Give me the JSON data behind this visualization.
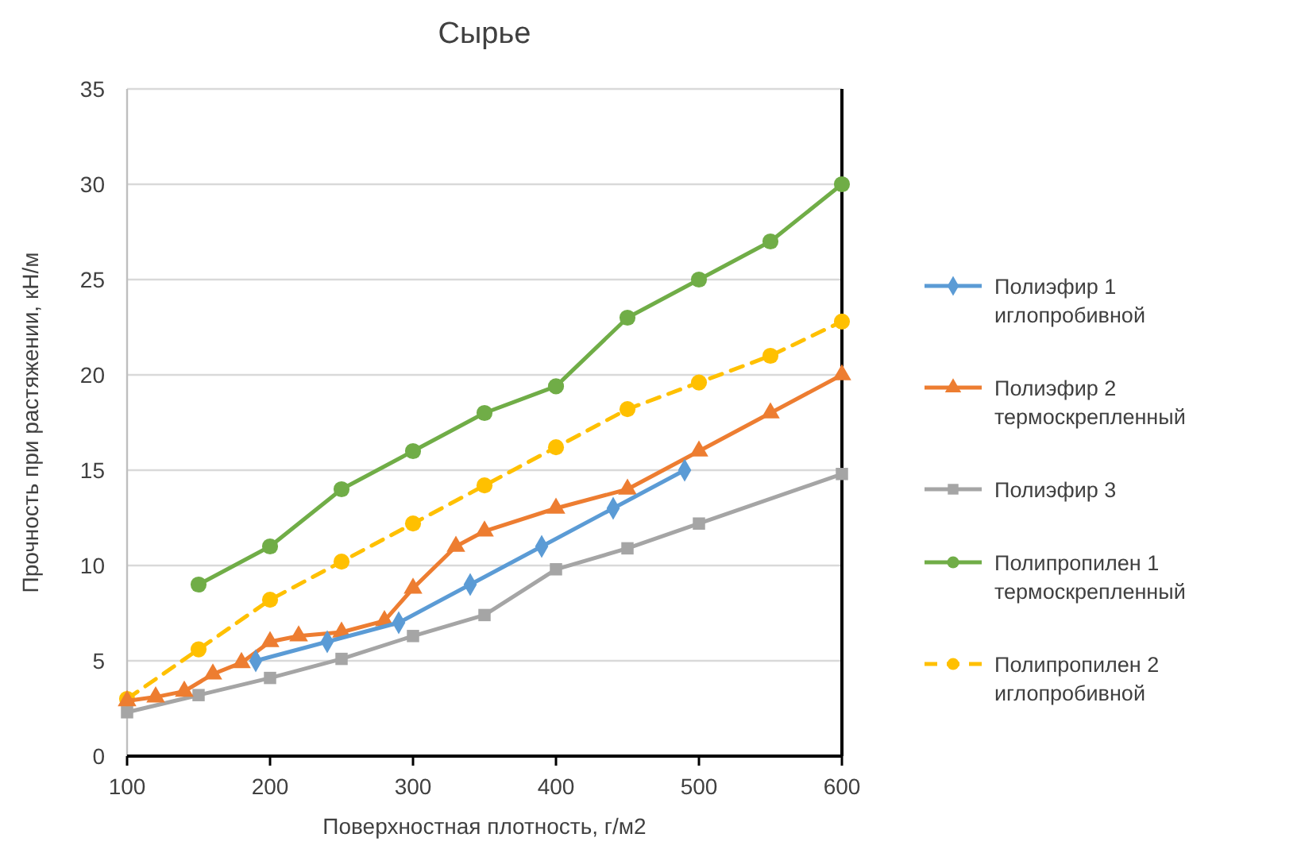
{
  "chart_data": {
    "type": "line",
    "title": "Сырье",
    "xlabel": "Поверхностная плотность, г/м2",
    "ylabel": "Прочность при растяжении, кН/м",
    "xlim": [
      100,
      600
    ],
    "xticks": [
      100,
      200,
      300,
      400,
      500,
      600
    ],
    "ylim": [
      0,
      35
    ],
    "yticks": [
      0,
      5,
      10,
      15,
      20,
      25,
      30,
      35
    ],
    "grid": "y",
    "legend": "right",
    "series": [
      {
        "name": "Полиэфир 1 иглопробивной",
        "color": "#5b9bd5",
        "marker": "diamond",
        "line_style": "solid",
        "x": [
          190,
          240,
          290,
          340,
          390,
          440,
          490
        ],
        "values": [
          5,
          6,
          7,
          9,
          11,
          13,
          15
        ]
      },
      {
        "name": "Полиэфир 2 термоскрепленный",
        "color": "#ed7d31",
        "marker": "triangle",
        "line_style": "solid",
        "x": [
          100,
          120,
          140,
          160,
          180,
          200,
          220,
          250,
          280,
          300,
          330,
          350,
          400,
          450,
          500,
          550,
          600
        ],
        "values": [
          2.9,
          3.1,
          3.4,
          4.3,
          4.9,
          6,
          6.3,
          6.5,
          7.1,
          8.8,
          11,
          11.8,
          13,
          14,
          16,
          18,
          20
        ]
      },
      {
        "name": "Полиэфир 3",
        "color": "#a5a5a5",
        "marker": "square",
        "line_style": "solid",
        "x": [
          100,
          150,
          200,
          250,
          300,
          350,
          400,
          450,
          500,
          600
        ],
        "values": [
          2.3,
          3.2,
          4.1,
          5.1,
          6.3,
          7.4,
          9.8,
          10.9,
          12.2,
          14.8
        ]
      },
      {
        "name": "Полипропилен 1 термоскрепленный",
        "color": "#70ad47",
        "marker": "circle",
        "line_style": "solid",
        "x": [
          150,
          200,
          250,
          300,
          350,
          400,
          450,
          500,
          550,
          600
        ],
        "values": [
          9,
          11,
          14,
          16,
          18,
          19.4,
          23,
          25,
          27,
          30
        ]
      },
      {
        "name": "Полипропилен 2 иглопробивной",
        "color": "#ffc000",
        "marker": "circle",
        "line_style": "dashed",
        "x": [
          100,
          150,
          200,
          250,
          300,
          350,
          400,
          450,
          500,
          550,
          600
        ],
        "values": [
          3,
          5.6,
          8.2,
          10.2,
          12.2,
          14.2,
          16.2,
          18.2,
          19.6,
          21,
          22.8
        ]
      }
    ]
  }
}
